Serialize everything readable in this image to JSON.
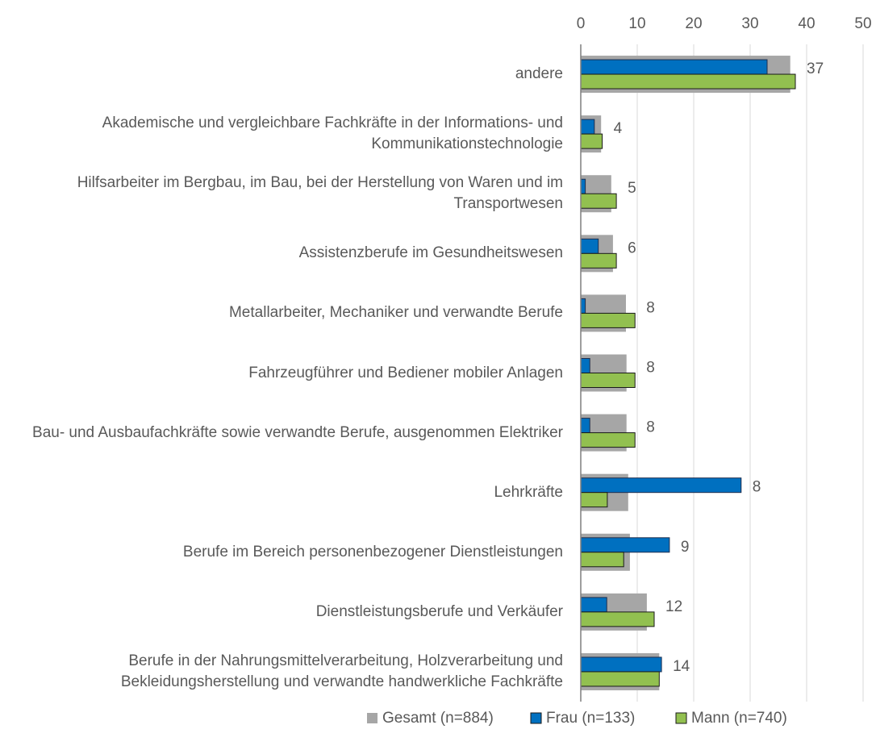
{
  "chart_data": {
    "type": "bar",
    "orientation": "horizontal",
    "categories": [
      "andere",
      "Akademische und vergleichbare Fachkräfte in der Informations- und Kommunikationstechnologie",
      "Hilfsarbeiter im Bergbau, im Bau, bei der Herstellung von Waren und im Transportwesen",
      "Assistenzberufe im Gesundheitswesen",
      "Metallarbeiter, Mechaniker und verwandte Berufe",
      "Fahrzeugführer und Bediener mobiler Anlagen",
      "Bau- und Ausbaufachkräfte sowie verwandte Berufe, ausgenommen Elektriker",
      "Lehrkräfte",
      "Berufe im Bereich personenbezogener Dienstleistungen",
      "Dienstleistungsberufe und Verkäufer",
      "Berufe in der Nahrungsmittelverarbeitung, Holzverarbeitung und Bekleidungsherstellung und verwandte handwerkliche Fachkräfte"
    ],
    "series": [
      {
        "name": "Gesamt (n=884)",
        "color": "#a6a6a6",
        "values": [
          37.1,
          3.6,
          5.4,
          5.7,
          8.0,
          8.1,
          8.1,
          8.4,
          8.7,
          11.7,
          13.9
        ],
        "value_labels": [
          "37",
          "4",
          "5",
          "6",
          "8",
          "8",
          "8",
          "8",
          "9",
          "12",
          "14"
        ]
      },
      {
        "name": "Frau (n=133)",
        "color": "#0070c0",
        "values": [
          33.0,
          2.4,
          0.8,
          3.1,
          0.8,
          1.6,
          1.6,
          28.4,
          15.7,
          4.6,
          14.3
        ]
      },
      {
        "name": "Mann (n=740)",
        "color": "#92c050",
        "values": [
          38.0,
          3.8,
          6.3,
          6.3,
          9.6,
          9.6,
          9.6,
          4.7,
          7.6,
          13.0,
          13.9
        ]
      }
    ],
    "xlim": [
      0,
      50
    ],
    "xticks": [
      0,
      10,
      20,
      30,
      40,
      50
    ],
    "grid": true,
    "legend": "bottom"
  }
}
